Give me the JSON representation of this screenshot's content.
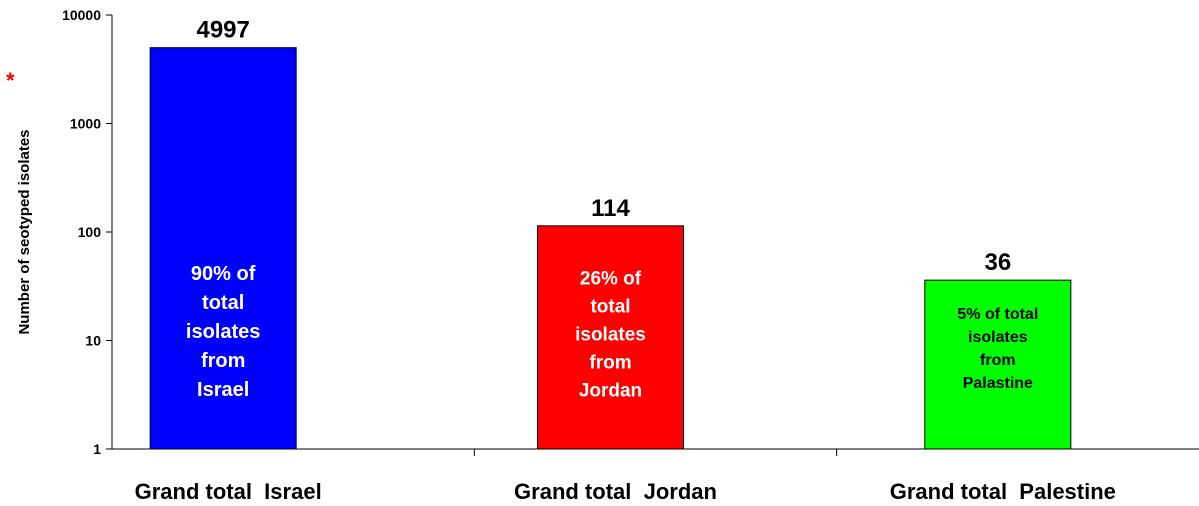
{
  "chart_data": {
    "type": "bar",
    "scale": "log",
    "ylim": [
      1,
      10000
    ],
    "yticks": [
      "1",
      "10",
      "100",
      "1000",
      "10000"
    ],
    "ylabel": "Number of seotyped isolates",
    "ylabel_marker": "*",
    "categories": [
      "Grand total  Israel",
      "Grand total  Jordan",
      "Grand total  Palestine"
    ],
    "values": [
      4997,
      114,
      36
    ],
    "value_labels": [
      "4997",
      "114",
      "36"
    ],
    "bar_labels": [
      [
        "90% of",
        "total",
        "isolates",
        "from",
        "Israel"
      ],
      [
        "26% of",
        "total",
        "isolates",
        "from",
        "Jordan"
      ],
      [
        "5% of total",
        "isolates",
        "from",
        "Palastine"
      ]
    ],
    "colors": [
      "#0000ff",
      "#ff0000",
      "#00ff00"
    ],
    "bar_label_colors": [
      "#ffffff",
      "#ffffff",
      "#000000"
    ],
    "grid": false,
    "legend": "none"
  }
}
